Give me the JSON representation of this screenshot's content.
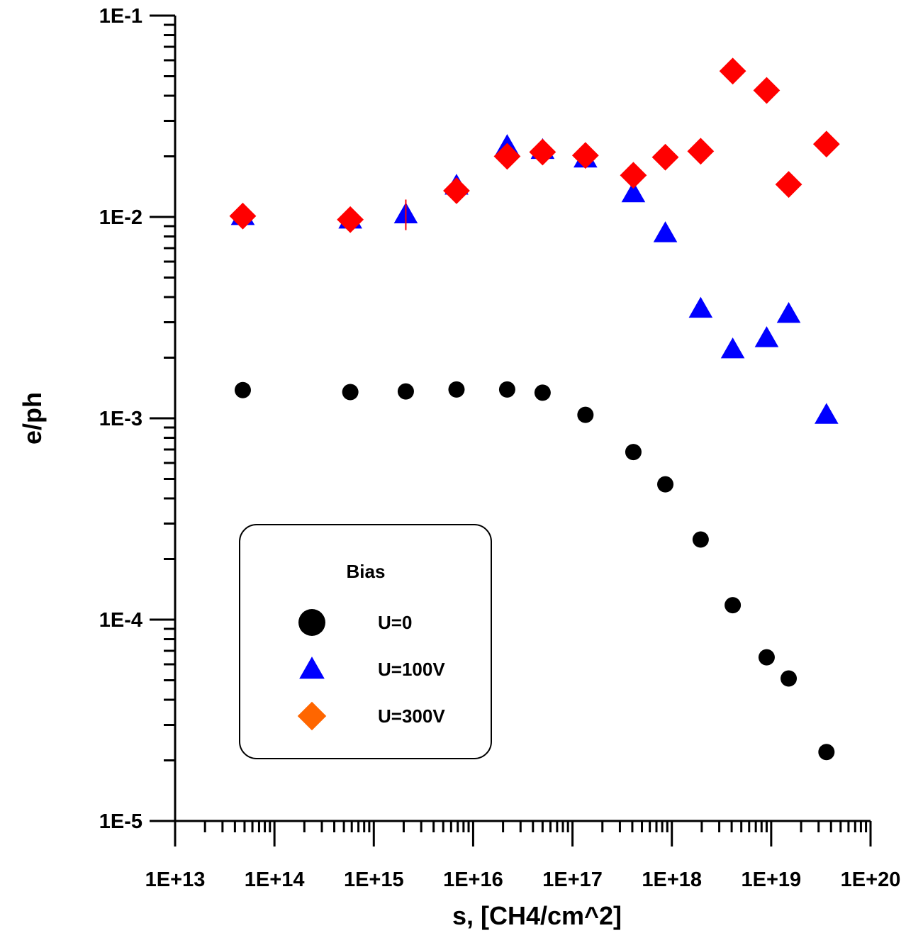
{
  "chart_data": {
    "type": "scatter",
    "xlabel": "s, [CH4/cm^2]",
    "ylabel": "e/ph",
    "x_scale": "log",
    "y_scale": "log",
    "xlim": [
      10000000000000.0,
      1e+20
    ],
    "ylim": [
      1e-05,
      0.1
    ],
    "x_ticks": [
      {
        "value": 10000000000000.0,
        "label": "1E+13"
      },
      {
        "value": 100000000000000.0,
        "label": "1E+14"
      },
      {
        "value": 1000000000000000.0,
        "label": "1E+15"
      },
      {
        "value": 1e+16,
        "label": "1E+16"
      },
      {
        "value": 1e+17,
        "label": "1E+17"
      },
      {
        "value": 1e+18,
        "label": "1E+18"
      },
      {
        "value": 1e+19,
        "label": "1E+19"
      },
      {
        "value": 1e+20,
        "label": "1E+20"
      }
    ],
    "y_ticks": [
      {
        "value": 1e-05,
        "label": "1E-5"
      },
      {
        "value": 0.0001,
        "label": "1E-4"
      },
      {
        "value": 0.001,
        "label": "1E-3"
      },
      {
        "value": 0.01,
        "label": "1E-2"
      },
      {
        "value": 0.1,
        "label": "1E-1"
      }
    ],
    "grid": false,
    "legend": {
      "title": "Bias",
      "placement": "lower-left"
    },
    "series": [
      {
        "name": "U=0",
        "marker": "circle",
        "color": "#000000",
        "points": [
          [
            48000000000000.0,
            0.00138
          ],
          [
            580000000000000.0,
            0.00135
          ],
          [
            2100000000000000.0,
            0.00136
          ],
          [
            6800000000000000.0,
            0.00139
          ],
          [
            2.2e+16,
            0.00139
          ],
          [
            5e+16,
            0.00134
          ],
          [
            1.35e+17,
            0.00104
          ],
          [
            4.1e+17,
            0.00068
          ],
          [
            8.6e+17,
            0.00047
          ],
          [
            1.95e+18,
            0.00025
          ],
          [
            4.1e+18,
            0.000118
          ],
          [
            9e+18,
            6.5e-05
          ],
          [
            1.5e+19,
            5.1e-05
          ],
          [
            3.6e+19,
            2.2e-05
          ]
        ]
      },
      {
        "name": "U=100V",
        "marker": "triangle",
        "color": "#0000ff",
        "points": [
          [
            48000000000000.0,
            0.0101
          ],
          [
            580000000000000.0,
            0.0097
          ],
          [
            2100000000000000.0,
            0.0103
          ],
          [
            6800000000000000.0,
            0.0143
          ],
          [
            2.2e+16,
            0.0225
          ],
          [
            5e+16,
            0.0215
          ],
          [
            1.35e+17,
            0.0195
          ],
          [
            4.1e+17,
            0.0131
          ],
          [
            8.6e+17,
            0.0083
          ],
          [
            1.95e+18,
            0.0035
          ],
          [
            4.1e+18,
            0.0022
          ],
          [
            9e+18,
            0.0025
          ],
          [
            1.5e+19,
            0.0033
          ],
          [
            3.6e+19,
            0.00104
          ]
        ]
      },
      {
        "name": "U=300V",
        "marker": "diamond",
        "color": "#ff0000",
        "legend_color": "#ff6600",
        "points": [
          [
            48000000000000.0,
            0.0101
          ],
          [
            580000000000000.0,
            0.0097
          ],
          [
            6800000000000000.0,
            0.0135
          ],
          [
            2.2e+16,
            0.02
          ],
          [
            5e+16,
            0.021
          ],
          [
            1.35e+17,
            0.0202
          ],
          [
            4.1e+17,
            0.0161
          ],
          [
            8.6e+17,
            0.0198
          ],
          [
            1.95e+18,
            0.0212
          ],
          [
            4.1e+18,
            0.053
          ],
          [
            9e+18,
            0.0425
          ],
          [
            1.5e+19,
            0.0145
          ],
          [
            3.6e+19,
            0.023
          ]
        ],
        "error_bars": [
          {
            "x": 2100000000000000.0,
            "low": 0.0086,
            "high": 0.0122
          }
        ]
      }
    ]
  }
}
